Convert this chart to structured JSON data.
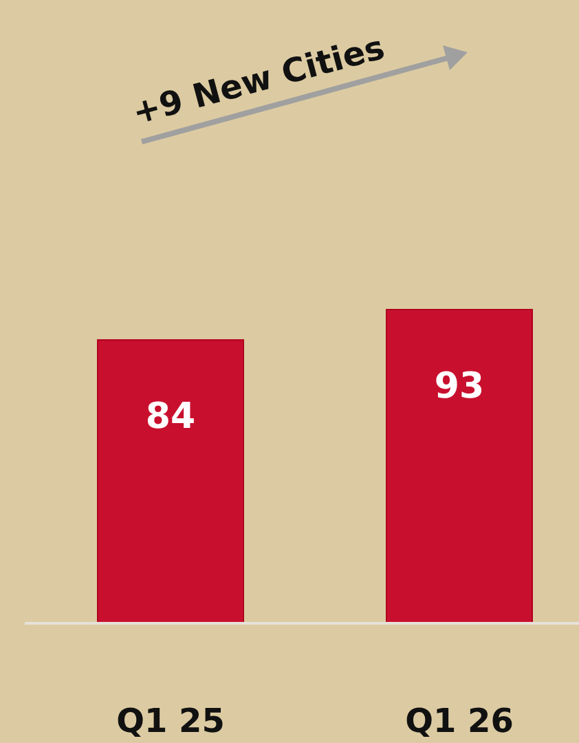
{
  "chart_data": {
    "type": "bar",
    "categories": [
      "Q1 25",
      "Q1 26"
    ],
    "values": [
      84,
      93
    ],
    "color": "#c8102e",
    "data_labels": true,
    "annotations": [
      "+9 New Cities"
    ]
  }
}
